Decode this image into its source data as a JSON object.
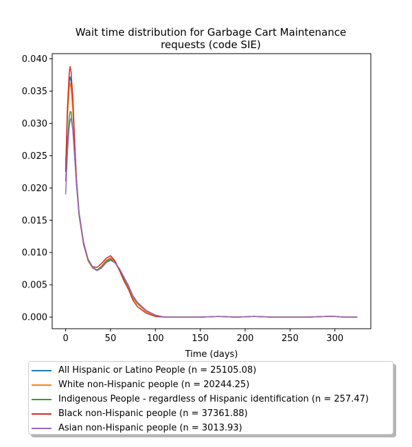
{
  "chart_data": {
    "type": "line",
    "title": [
      "Wait time distribution  for Garbage Cart Maintenance",
      "requests (code SIE)"
    ],
    "xlabel": "Time (days)",
    "ylabel": "",
    "xlim": [
      -15,
      340
    ],
    "ylim": [
      -0.0018,
      0.0408
    ],
    "xticks": [
      0,
      50,
      100,
      150,
      200,
      250,
      300
    ],
    "yticks": [
      0.0,
      0.005,
      0.01,
      0.015,
      0.02,
      0.025,
      0.03,
      0.035,
      0.04
    ],
    "ytick_format": 3,
    "grid": false,
    "legend_position": "below",
    "series": [
      {
        "name": "All Hispanic or Latino People (n = 25105.08)",
        "color": "#1f77b4",
        "x": [
          0,
          2,
          4,
          5,
          6,
          8,
          10,
          12,
          15,
          20,
          25,
          30,
          35,
          40,
          45,
          50,
          55,
          60,
          65,
          70,
          75,
          80,
          90,
          100,
          110,
          130,
          150,
          170,
          190,
          210,
          230,
          250,
          270,
          290,
          300,
          310,
          325
        ],
        "y": [
          0.0225,
          0.032,
          0.0365,
          0.0372,
          0.0365,
          0.033,
          0.027,
          0.0215,
          0.0162,
          0.0115,
          0.0088,
          0.0076,
          0.0072,
          0.0078,
          0.0087,
          0.0091,
          0.0085,
          0.0073,
          0.0058,
          0.0046,
          0.003,
          0.0021,
          0.0009,
          0.0002,
          0.0,
          0.0,
          0.0,
          0.0001,
          0.0,
          0.0001,
          0.0,
          0.0,
          0.0,
          0.0001,
          0.0001,
          0.0,
          0.0
        ]
      },
      {
        "name": "White non-Hispanic people (n = 20244.25)",
        "color": "#ff7f0e",
        "x": [
          0,
          2,
          4,
          5,
          6,
          8,
          10,
          12,
          15,
          20,
          25,
          30,
          35,
          40,
          45,
          50,
          55,
          60,
          65,
          70,
          75,
          80,
          90,
          100,
          110,
          130,
          150,
          170,
          190,
          210,
          230,
          250,
          270,
          290,
          300,
          310,
          325
        ],
        "y": [
          0.0235,
          0.031,
          0.0355,
          0.0362,
          0.0355,
          0.032,
          0.0268,
          0.0214,
          0.016,
          0.0113,
          0.0087,
          0.0076,
          0.0073,
          0.0079,
          0.0088,
          0.0092,
          0.0086,
          0.0073,
          0.0057,
          0.0045,
          0.0029,
          0.002,
          0.0008,
          0.0002,
          0.0,
          0.0,
          0.0,
          0.0001,
          0.0,
          0.0001,
          0.0,
          0.0,
          0.0,
          0.0001,
          0.0001,
          0.0,
          0.0
        ]
      },
      {
        "name": "Indigenous People - regardless of Hispanic identification (n = 257.47)",
        "color": "#2ca02c",
        "x": [
          0,
          2,
          4,
          5,
          6,
          8,
          10,
          12,
          15,
          20,
          25,
          30,
          35,
          40,
          45,
          50,
          55,
          60,
          65,
          70,
          75,
          80,
          90,
          100,
          110,
          130,
          150,
          170,
          190,
          210,
          230,
          250,
          270,
          290,
          300,
          310,
          325
        ],
        "y": [
          0.021,
          0.027,
          0.031,
          0.0318,
          0.0318,
          0.029,
          0.025,
          0.0205,
          0.0157,
          0.0113,
          0.0088,
          0.0077,
          0.0073,
          0.0078,
          0.0086,
          0.0089,
          0.0084,
          0.0073,
          0.006,
          0.0048,
          0.0032,
          0.0022,
          0.001,
          0.0003,
          0.0,
          0.0,
          0.0,
          0.0001,
          0.0,
          0.0001,
          0.0,
          0.0,
          0.0,
          0.0001,
          0.0001,
          0.0,
          0.0
        ]
      },
      {
        "name": "Black non-Hispanic people (n = 37361.88)",
        "color": "#d62728",
        "x": [
          0,
          2,
          4,
          5,
          6,
          8,
          10,
          12,
          15,
          20,
          25,
          30,
          35,
          40,
          45,
          50,
          55,
          60,
          65,
          70,
          75,
          80,
          90,
          100,
          110,
          130,
          150,
          170,
          190,
          210,
          230,
          250,
          270,
          290,
          300,
          310,
          325
        ],
        "y": [
          0.0225,
          0.0325,
          0.0378,
          0.0388,
          0.038,
          0.034,
          0.0272,
          0.0212,
          0.0158,
          0.0113,
          0.0089,
          0.0078,
          0.0077,
          0.0083,
          0.0091,
          0.0095,
          0.0087,
          0.0072,
          0.0056,
          0.0043,
          0.0026,
          0.0016,
          0.0006,
          0.0001,
          0.0,
          0.0,
          0.0,
          0.0001,
          0.0,
          0.0001,
          0.0,
          0.0,
          0.0,
          0.0001,
          0.0001,
          0.0,
          0.0
        ]
      },
      {
        "name": "Asian non-Hispanic people (n = 3013.93)",
        "color": "#9467bd",
        "x": [
          0,
          2,
          4,
          5,
          6,
          8,
          10,
          12,
          15,
          20,
          25,
          30,
          35,
          40,
          45,
          50,
          55,
          60,
          65,
          70,
          75,
          80,
          90,
          100,
          110,
          130,
          150,
          170,
          190,
          210,
          230,
          250,
          270,
          290,
          300,
          310,
          325
        ],
        "y": [
          0.019,
          0.0255,
          0.0295,
          0.0305,
          0.0308,
          0.029,
          0.025,
          0.0207,
          0.016,
          0.0116,
          0.009,
          0.0078,
          0.0072,
          0.0076,
          0.0084,
          0.0088,
          0.0084,
          0.0075,
          0.0062,
          0.0049,
          0.0033,
          0.0023,
          0.001,
          0.0003,
          0.0,
          0.0,
          0.0,
          0.0001,
          0.0,
          0.0001,
          0.0,
          0.0,
          0.0,
          0.0001,
          0.0001,
          0.0,
          0.0
        ]
      }
    ]
  }
}
